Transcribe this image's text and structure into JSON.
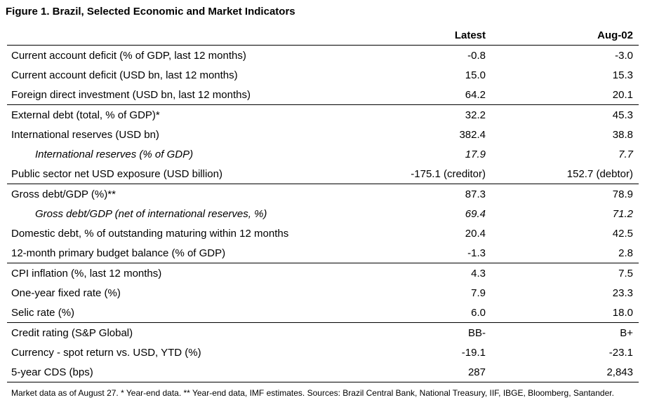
{
  "title": "Figure 1. Brazil, Selected Economic and Market Indicators",
  "columns": [
    "",
    "Latest",
    "Aug-02"
  ],
  "rows": [
    {
      "label": "Current account deficit (% of GDP, last 12 months)",
      "latest": "-0.8",
      "aug02": "-3.0",
      "indent": false,
      "sep": false
    },
    {
      "label": "Current account deficit (USD bn, last 12 months)",
      "latest": "15.0",
      "aug02": "15.3",
      "indent": false,
      "sep": false
    },
    {
      "label": "Foreign direct investment (USD bn, last 12 months)",
      "latest": "64.2",
      "aug02": "20.1",
      "indent": false,
      "sep": true
    },
    {
      "label": "External debt (total, % of GDP)*",
      "latest": "32.2",
      "aug02": "45.3",
      "indent": false,
      "sep": false
    },
    {
      "label": "International reserves (USD bn)",
      "latest": "382.4",
      "aug02": "38.8",
      "indent": false,
      "sep": false
    },
    {
      "label": "International reserves (% of GDP)",
      "latest": "17.9",
      "aug02": "7.7",
      "indent": true,
      "sep": false
    },
    {
      "label": "Public sector net USD exposure (USD billion)",
      "latest": "-175.1 (creditor)",
      "aug02": "152.7 (debtor)",
      "indent": false,
      "sep": true
    },
    {
      "label": "Gross debt/GDP (%)**",
      "latest": "87.3",
      "aug02": "78.9",
      "indent": false,
      "sep": false
    },
    {
      "label": "Gross debt/GDP (net of international reserves, %)",
      "latest": "69.4",
      "aug02": "71.2",
      "indent": true,
      "sep": false
    },
    {
      "label": "Domestic debt, % of outstanding maturing within 12 months",
      "latest": "20.4",
      "aug02": "42.5",
      "indent": false,
      "sep": false
    },
    {
      "label": "12-month primary budget balance (% of GDP)",
      "latest": "-1.3",
      "aug02": "2.8",
      "indent": false,
      "sep": true
    },
    {
      "label": "CPI inflation (%, last 12 months)",
      "latest": "4.3",
      "aug02": "7.5",
      "indent": false,
      "sep": false
    },
    {
      "label": "One-year fixed rate (%)",
      "latest": "7.9",
      "aug02": "23.3",
      "indent": false,
      "sep": false
    },
    {
      "label": "Selic rate (%)",
      "latest": "6.0",
      "aug02": "18.0",
      "indent": false,
      "sep": true
    },
    {
      "label": "Credit rating (S&P Global)",
      "latest": "BB-",
      "aug02": "B+",
      "indent": false,
      "sep": false
    },
    {
      "label": "Currency - spot return vs. USD, YTD (%)",
      "latest": "-19.1",
      "aug02": "-23.1",
      "indent": false,
      "sep": false
    },
    {
      "label": "5-year CDS (bps)",
      "latest": "287",
      "aug02": "2,843",
      "indent": false,
      "sep": true
    }
  ],
  "footnote": "Market data as of August 27. * Year-end data. ** Year-end data, IMF estimates. Sources: Brazil Central Bank, National Treasury, IIF, IBGE, Bloomberg, Santander."
}
